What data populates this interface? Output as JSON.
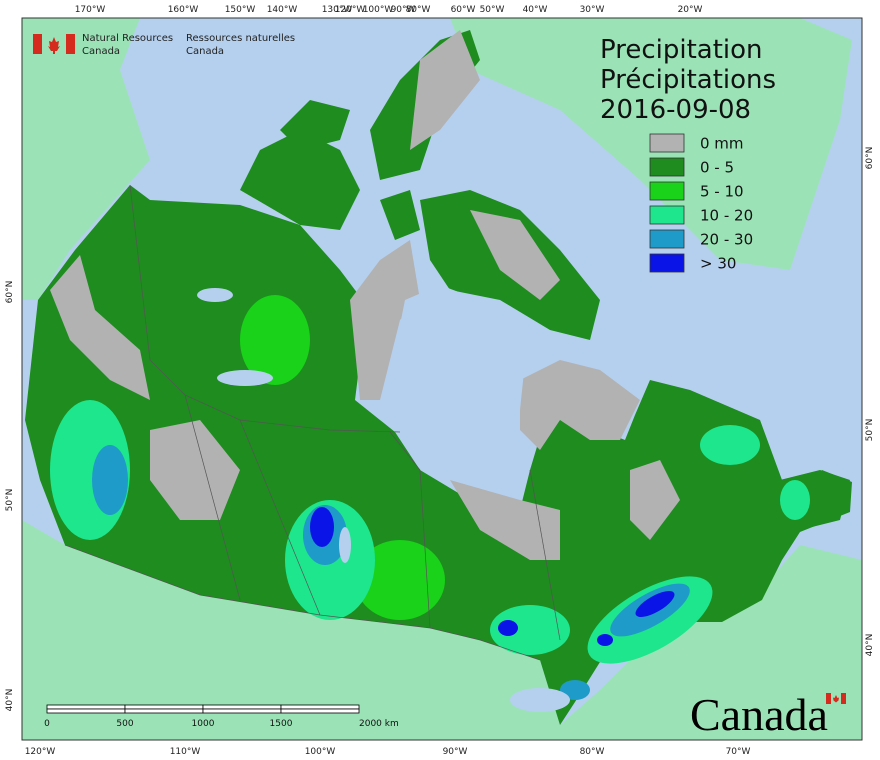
{
  "header": {
    "agency_en": "Natural Resources",
    "agency_en_2": "Canada",
    "agency_fr": "Ressources naturelles",
    "agency_fr_2": "Canada"
  },
  "title": {
    "line1": "Precipitation",
    "line2": "Précipitations",
    "date": "2016-09-08"
  },
  "legend": [
    {
      "label": "0 mm",
      "color": "#b2b2b2"
    },
    {
      "label": "0 - 5",
      "color": "#1e8c1e"
    },
    {
      "label": "5 - 10",
      "color": "#19d219"
    },
    {
      "label": "10 - 20",
      "color": "#1ee68c"
    },
    {
      "label": "20 - 30",
      "color": "#1e9bc8"
    },
    {
      "label": "> 30",
      "color": "#0a14e6"
    }
  ],
  "graticule": {
    "top": [
      "170°W",
      "160°W",
      "150°W",
      "140°W",
      "130°W",
      "120°W",
      "100°W",
      "90°W",
      "80°W",
      "60°W",
      "50°W",
      "40°W",
      "30°W",
      "20°W"
    ],
    "bottom": [
      "120°W",
      "110°W",
      "100°W",
      "90°W",
      "80°W",
      "70°W"
    ],
    "left": [
      "60°N",
      "50°N",
      "40°N"
    ],
    "right": [
      "60°N",
      "50°N",
      "40°N"
    ]
  },
  "scale_bar": {
    "labels": [
      "0",
      "500",
      "1000",
      "1500",
      "2000  km"
    ]
  },
  "wordmark": "Canada"
}
